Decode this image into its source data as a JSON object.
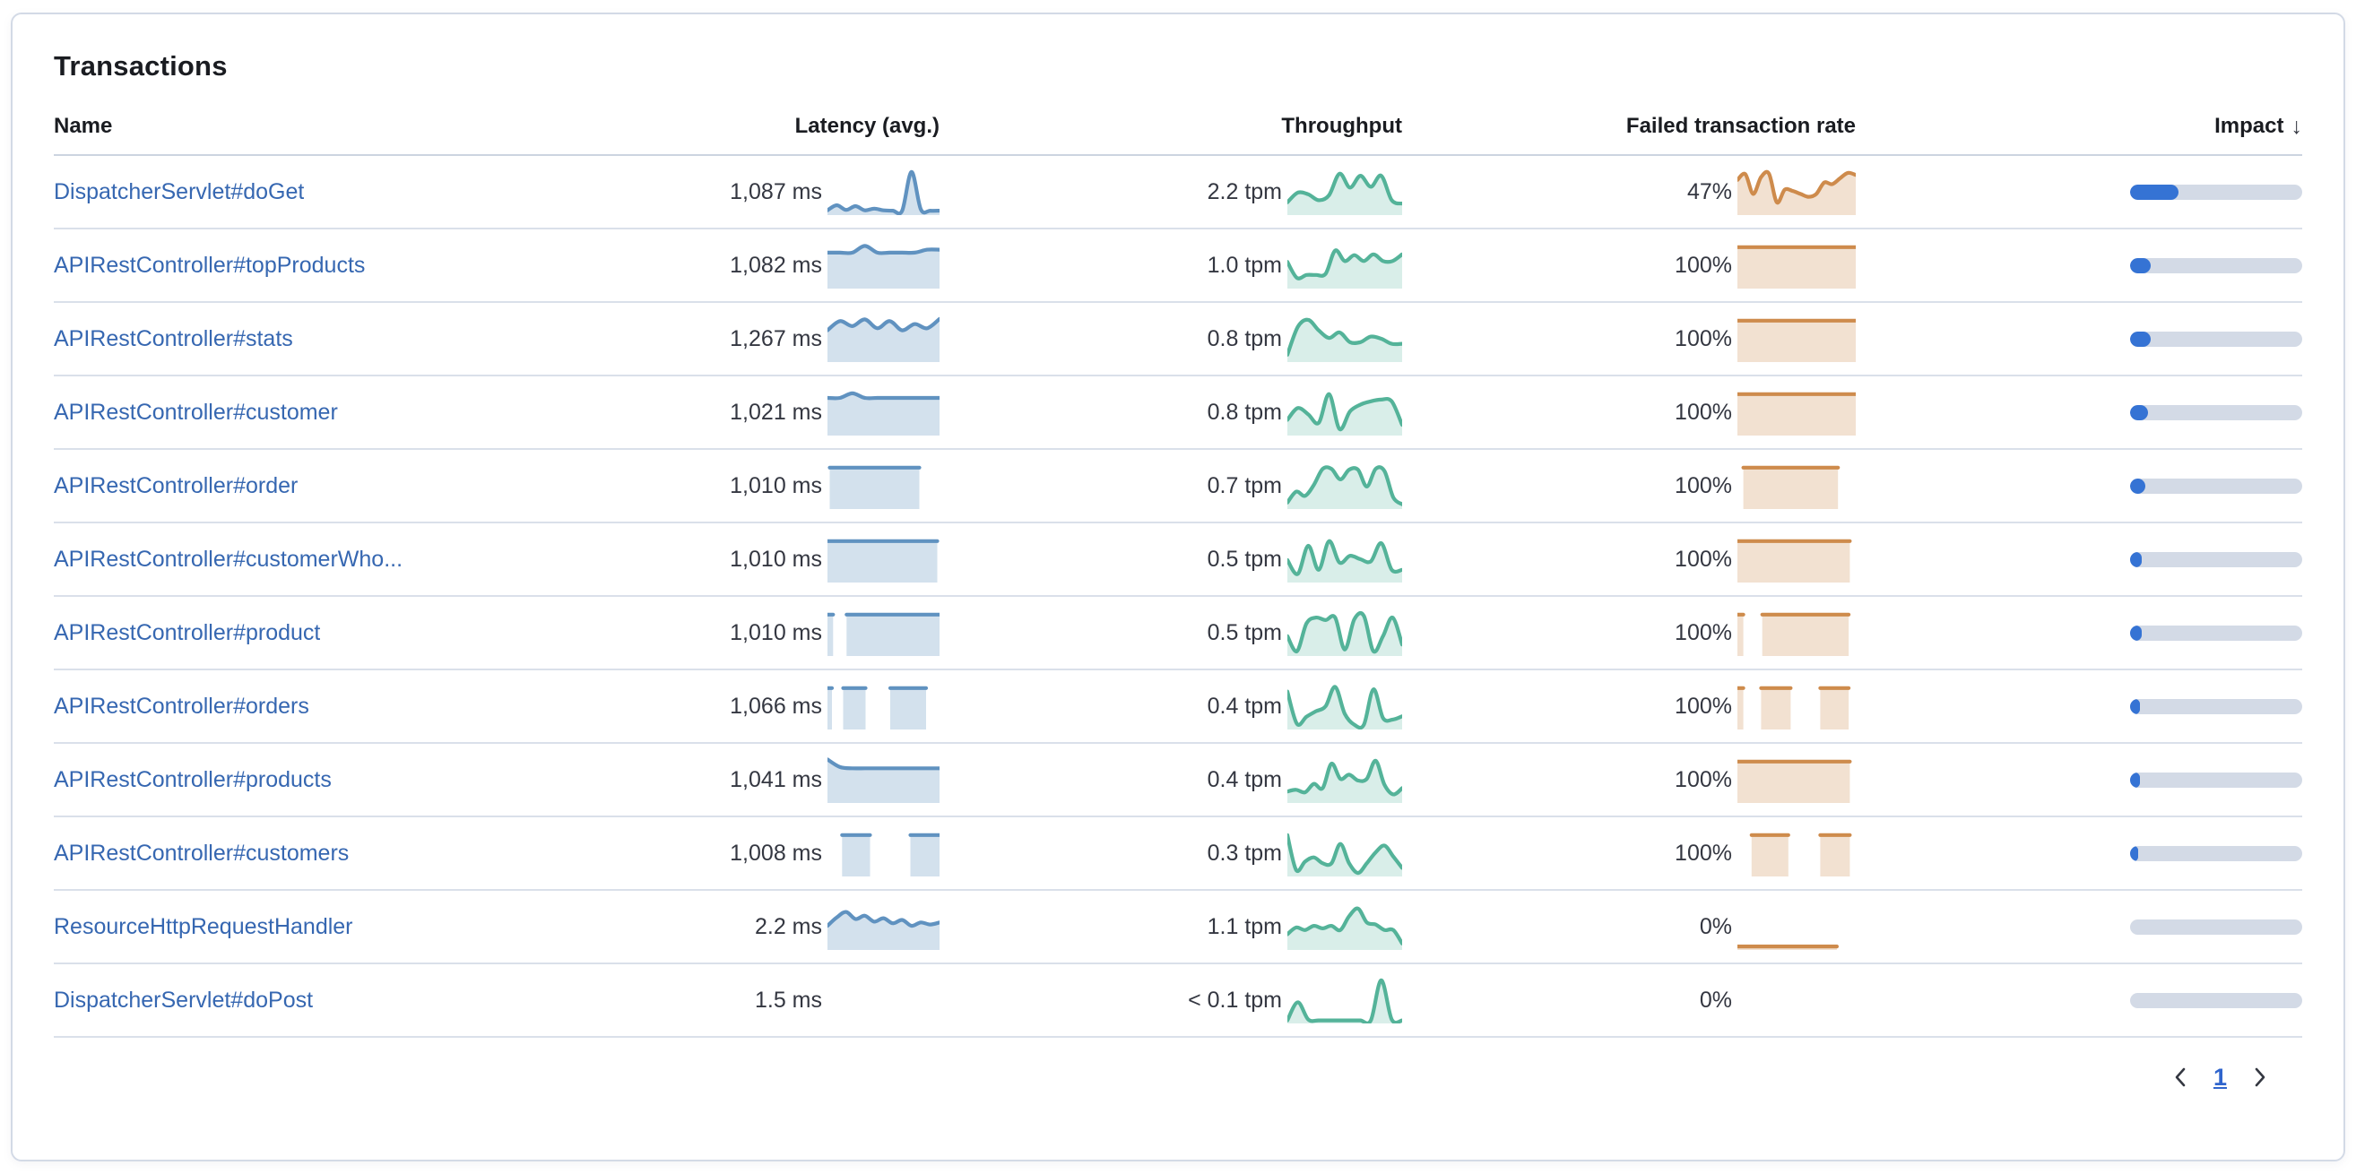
{
  "card": {
    "title": "Transactions"
  },
  "table": {
    "columns": {
      "name": "Name",
      "latency": "Latency (avg.)",
      "throughput": "Throughput",
      "failed": "Failed transaction rate",
      "impact": "Impact"
    },
    "sort_icon": "↓",
    "sorted_by": "Impact",
    "sort_direction": "descending"
  },
  "colors": {
    "link_blue": "#3667b1",
    "text": "#343741",
    "title": "#1a1c21",
    "row_border": "#dae0ea",
    "latency_line": "#6092C0",
    "latency_fill": "rgba(96,146,192,0.28)",
    "throughput_line": "#54B399",
    "throughput_fill": "rgba(84,179,153,0.22)",
    "failed_line": "#CE8B4C",
    "failed_fill": "rgba(206,139,76,0.26)",
    "impact_fill": "#3573d4",
    "impact_track": "#d3dae6"
  },
  "pagination": {
    "current_page": "1"
  },
  "rows": [
    {
      "name": "DispatcherServlet#doGet",
      "latency": "1,087 ms",
      "throughput": "2.2 tpm",
      "failed_rate": "47%",
      "impact": 0.28,
      "latency_spark": {
        "segments": [
          {
            "x0": 0,
            "x1": 1,
            "y": [
              0.06,
              0.18,
              0.07,
              0.16,
              0.06,
              0.1,
              0.06,
              0.05,
              0.05,
              0.97,
              0.08,
              0.05,
              0.05
            ]
          }
        ]
      },
      "throughput_spark": {
        "segments": [
          {
            "x0": 0,
            "x1": 1,
            "y": [
              0.25,
              0.48,
              0.44,
              0.3,
              0.42,
              0.93,
              0.6,
              0.88,
              0.62,
              0.88,
              0.3,
              0.22
            ]
          }
        ]
      },
      "failed_spark": {
        "segments": [
          {
            "x0": 0,
            "x1": 1,
            "y": [
              0.78,
              0.92,
              0.45,
              0.85,
              0.93,
              0.25,
              0.55,
              0.52,
              0.45,
              0.38,
              0.45,
              0.72,
              0.68,
              0.82,
              0.95,
              0.9
            ]
          }
        ]
      }
    },
    {
      "name": "APIRestController#topProducts",
      "latency": "1,082 ms",
      "throughput": "1.0 tpm",
      "failed_rate": "100%",
      "impact": 0.12,
      "latency_spark": {
        "segments": [
          {
            "x0": 0,
            "x1": 1,
            "y": [
              0.8,
              0.8,
              0.8,
              0.96,
              0.8,
              0.8,
              0.8,
              0.8,
              0.87,
              0.87
            ]
          }
        ]
      },
      "throughput_spark": {
        "segments": [
          {
            "x0": 0,
            "x1": 1,
            "y": [
              0.58,
              0.2,
              0.27,
              0.27,
              0.3,
              0.85,
              0.6,
              0.74,
              0.6,
              0.76,
              0.6,
              0.6,
              0.76
            ]
          }
        ]
      },
      "failed_spark": {
        "segments": [
          {
            "x0": 0,
            "x1": 1,
            "flat": true,
            "y": [
              0.93,
              0.93
            ]
          }
        ]
      }
    },
    {
      "name": "APIRestController#stats",
      "latency": "1,267 ms",
      "throughput": "0.8 tpm",
      "failed_rate": "100%",
      "impact": 0.12,
      "latency_spark": {
        "segments": [
          {
            "x0": 0,
            "x1": 1,
            "y": [
              0.7,
              0.92,
              0.8,
              0.96,
              0.75,
              0.92,
              0.7,
              0.85,
              0.75,
              0.97
            ]
          }
        ]
      },
      "throughput_spark": {
        "segments": [
          {
            "x0": 0,
            "x1": 1,
            "y": [
              0.12,
              0.78,
              0.95,
              0.7,
              0.52,
              0.65,
              0.42,
              0.42,
              0.55,
              0.5,
              0.38,
              0.38
            ]
          }
        ]
      },
      "failed_spark": {
        "segments": [
          {
            "x0": 0,
            "x1": 1,
            "flat": true,
            "y": [
              0.93,
              0.93
            ]
          }
        ]
      }
    },
    {
      "name": "APIRestController#customer",
      "latency": "1,021 ms",
      "throughput": "0.8 tpm",
      "failed_rate": "100%",
      "impact": 0.104,
      "latency_spark": {
        "segments": [
          {
            "x0": 0,
            "x1": 1,
            "y": [
              0.84,
              0.84,
              0.95,
              0.84,
              0.84,
              0.84,
              0.84,
              0.84,
              0.84,
              0.84
            ]
          }
        ]
      },
      "throughput_spark": {
        "segments": [
          {
            "x0": 0,
            "x1": 1,
            "y": [
              0.32,
              0.6,
              0.45,
              0.25,
              0.93,
              0.1,
              0.52,
              0.68,
              0.76,
              0.8,
              0.76,
              0.2
            ]
          }
        ]
      },
      "failed_spark": {
        "segments": [
          {
            "x0": 0,
            "x1": 1,
            "flat": true,
            "y": [
              0.93,
              0.93
            ]
          }
        ]
      }
    },
    {
      "name": "APIRestController#order",
      "latency": "1,010 ms",
      "throughput": "0.7 tpm",
      "failed_rate": "100%",
      "impact": 0.087,
      "latency_spark": {
        "segments": [
          {
            "x0": 0.02,
            "x1": 0.82,
            "flat": true,
            "y": [
              0.93,
              0.93
            ]
          }
        ]
      },
      "throughput_spark": {
        "segments": [
          {
            "x0": 0,
            "x1": 1,
            "y": [
              0.1,
              0.36,
              0.26,
              0.52,
              0.9,
              0.9,
              0.65,
              0.88,
              0.88,
              0.48,
              0.9,
              0.85,
              0.22,
              0.06
            ]
          }
        ]
      },
      "failed_spark": {
        "segments": [
          {
            "x0": 0.05,
            "x1": 0.85,
            "flat": true,
            "y": [
              0.93,
              0.93
            ]
          }
        ]
      }
    },
    {
      "name": "APIRestController#customerWho...",
      "latency": "1,010 ms",
      "throughput": "0.5 tpm",
      "failed_rate": "100%",
      "impact": 0.066,
      "latency_spark": {
        "segments": [
          {
            "x0": 0,
            "x1": 0.98,
            "flat": true,
            "y": [
              0.93,
              0.93
            ]
          }
        ]
      },
      "throughput_spark": {
        "segments": [
          {
            "x0": 0,
            "x1": 1,
            "y": [
              0.48,
              0.15,
              0.82,
              0.25,
              0.93,
              0.42,
              0.58,
              0.5,
              0.45,
              0.88,
              0.25,
              0.25
            ]
          }
        ]
      },
      "failed_spark": {
        "segments": [
          {
            "x0": 0,
            "x1": 0.95,
            "flat": true,
            "y": [
              0.93,
              0.93
            ]
          }
        ]
      }
    },
    {
      "name": "APIRestController#product",
      "latency": "1,010 ms",
      "throughput": "0.5 tpm",
      "failed_rate": "100%",
      "impact": 0.066,
      "latency_spark": {
        "segments": [
          {
            "x0": 0,
            "x1": 0.05,
            "flat": true,
            "y": [
              0.93,
              0.93
            ]
          },
          {
            "x0": 0.17,
            "x1": 1,
            "flat": true,
            "y": [
              0.93,
              0.93
            ]
          }
        ]
      },
      "throughput_spark": {
        "segments": [
          {
            "x0": 0,
            "x1": 1,
            "y": [
              0.42,
              0.06,
              0.72,
              0.86,
              0.8,
              0.86,
              0.1,
              0.82,
              0.9,
              0.06,
              0.42,
              0.86,
              0.22
            ]
          }
        ]
      },
      "failed_spark": {
        "segments": [
          {
            "x0": 0,
            "x1": 0.05,
            "flat": true,
            "y": [
              0.93,
              0.93
            ]
          },
          {
            "x0": 0.21,
            "x1": 0.94,
            "flat": true,
            "y": [
              0.93,
              0.93
            ]
          }
        ]
      }
    },
    {
      "name": "APIRestController#orders",
      "latency": "1,066 ms",
      "throughput": "0.4 tpm",
      "failed_rate": "100%",
      "impact": 0.055,
      "latency_spark": {
        "segments": [
          {
            "x0": 0,
            "x1": 0.04,
            "flat": true,
            "y": [
              0.93,
              0.93
            ]
          },
          {
            "x0": 0.14,
            "x1": 0.34,
            "flat": true,
            "y": [
              0.93,
              0.93
            ]
          },
          {
            "x0": 0.56,
            "x1": 0.88,
            "flat": true,
            "y": [
              0.93,
              0.93
            ]
          }
        ]
      },
      "throughput_spark": {
        "segments": [
          {
            "x0": 0,
            "x1": 1,
            "y": [
              0.85,
              0.08,
              0.25,
              0.38,
              0.5,
              0.96,
              0.32,
              0.06,
              0.06,
              0.9,
              0.22,
              0.18,
              0.26
            ]
          }
        ]
      },
      "failed_spark": {
        "segments": [
          {
            "x0": 0,
            "x1": 0.05,
            "flat": true,
            "y": [
              0.93,
              0.93
            ]
          },
          {
            "x0": 0.2,
            "x1": 0.45,
            "flat": true,
            "y": [
              0.93,
              0.93
            ]
          },
          {
            "x0": 0.7,
            "x1": 0.94,
            "flat": true,
            "y": [
              0.93,
              0.93
            ]
          }
        ]
      }
    },
    {
      "name": "APIRestController#products",
      "latency": "1,041 ms",
      "throughput": "0.4 tpm",
      "failed_rate": "100%",
      "impact": 0.055,
      "latency_spark": {
        "segments": [
          {
            "x0": 0,
            "x1": 1,
            "y": [
              0.98,
              0.8,
              0.77,
              0.77,
              0.77,
              0.77,
              0.77,
              0.77,
              0.77,
              0.77
            ]
          }
        ]
      },
      "throughput_spark": {
        "segments": [
          {
            "x0": 0,
            "x1": 1,
            "y": [
              0.22,
              0.26,
              0.2,
              0.4,
              0.3,
              0.88,
              0.52,
              0.62,
              0.48,
              0.52,
              0.95,
              0.38,
              0.15,
              0.3
            ]
          }
        ]
      },
      "failed_spark": {
        "segments": [
          {
            "x0": 0,
            "x1": 0.95,
            "flat": true,
            "y": [
              0.93,
              0.93
            ]
          }
        ]
      }
    },
    {
      "name": "APIRestController#customers",
      "latency": "1,008 ms",
      "throughput": "0.3 tpm",
      "failed_rate": "100%",
      "impact": 0.045,
      "latency_spark": {
        "segments": [
          {
            "x0": 0.13,
            "x1": 0.38,
            "flat": true,
            "y": [
              0.93,
              0.93
            ]
          },
          {
            "x0": 0.74,
            "x1": 1,
            "flat": true,
            "y": [
              0.93,
              0.93
            ]
          }
        ]
      },
      "throughput_spark": {
        "segments": [
          {
            "x0": 0,
            "x1": 1,
            "y": [
              0.93,
              0.1,
              0.3,
              0.4,
              0.26,
              0.26,
              0.72,
              0.26,
              0.03,
              0.26,
              0.52,
              0.68,
              0.42,
              0.15
            ]
          }
        ]
      },
      "failed_spark": {
        "segments": [
          {
            "x0": 0.12,
            "x1": 0.43,
            "flat": true,
            "y": [
              0.93,
              0.93
            ]
          },
          {
            "x0": 0.7,
            "x1": 0.95,
            "flat": true,
            "y": [
              0.93,
              0.93
            ]
          }
        ]
      }
    },
    {
      "name": "ResourceHttpRequestHandler",
      "latency": "2.2 ms",
      "throughput": "1.1 tpm",
      "failed_rate": "0%",
      "impact": 0,
      "latency_spark": {
        "segments": [
          {
            "x0": 0,
            "x1": 1,
            "y": [
              0.52,
              0.72,
              0.85,
              0.68,
              0.76,
              0.62,
              0.7,
              0.58,
              0.66,
              0.52,
              0.6,
              0.55,
              0.6
            ]
          }
        ]
      },
      "throughput_spark": {
        "segments": [
          {
            "x0": 0,
            "x1": 1,
            "y": [
              0.32,
              0.48,
              0.42,
              0.52,
              0.46,
              0.52,
              0.42,
              0.75,
              0.93,
              0.6,
              0.55,
              0.42,
              0.42,
              0.1
            ]
          }
        ]
      },
      "failed_spark": {
        "segments": [
          {
            "x0": 0,
            "x1": 0.84,
            "flat": true,
            "y": [
              0.03,
              0.03
            ]
          }
        ]
      }
    },
    {
      "name": "DispatcherServlet#doPost",
      "latency": "1.5 ms",
      "throughput": "< 0.1 tpm",
      "failed_rate": "0%",
      "impact": 0,
      "latency_spark": {
        "segments": []
      },
      "throughput_spark": {
        "segments": [
          {
            "x0": 0,
            "x1": 1,
            "y": [
              0.02,
              0.45,
              0.04,
              0.02,
              0.02,
              0.02,
              0.02,
              0.02,
              0.02,
              0.97,
              0.04,
              0.02
            ]
          }
        ]
      },
      "failed_spark": {
        "segments": []
      }
    }
  ]
}
